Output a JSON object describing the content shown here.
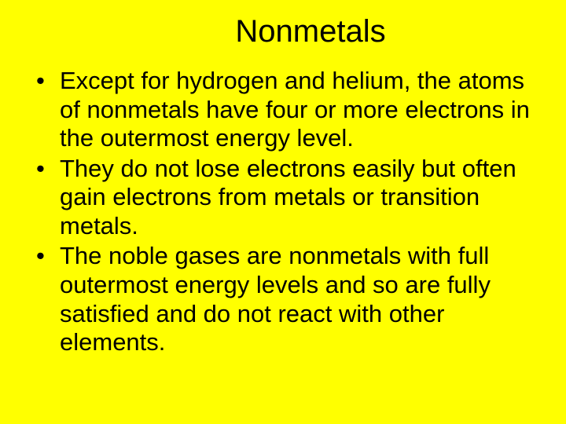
{
  "slide": {
    "background_color": "#ffff00",
    "text_color": "#000000",
    "title": "Nonmetals",
    "title_fontsize": 40,
    "body_fontsize": 31,
    "font_family": "Arial",
    "bullets": [
      "Except for hydrogen and helium, the atoms of nonmetals have four or more electrons in the outermost energy level.",
      "They do not lose electrons easily but often gain electrons from metals or transition metals.",
      "The noble gases are nonmetals with full outermost energy levels and so are fully satisfied and do not react with other elements."
    ]
  }
}
